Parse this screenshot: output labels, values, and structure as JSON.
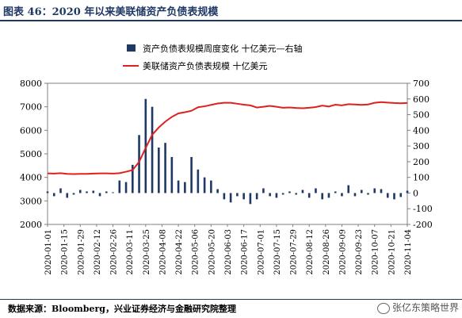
{
  "header": {
    "title": "图表 46：2020 年以来美联储资产负债表规模"
  },
  "footer": {
    "source": "数据来源：Bloomberg，兴业证券经济与金融研究院整理"
  },
  "watermark": {
    "text": "张亿东策略世界",
    "icon": "wechat-icon"
  },
  "chart_data": {
    "type": "bar+line",
    "legend_position": "top-center",
    "legend": [
      {
        "name": "资产负债表规模周度变化  十亿美元—右轴",
        "kind": "bar",
        "color": "#1f3864"
      },
      {
        "name": "美联储资产负债表规模  十亿美元",
        "kind": "line",
        "color": "#e02020"
      }
    ],
    "y_left": {
      "ylim": [
        2000,
        8000
      ],
      "ticks": [
        2000,
        3000,
        4000,
        5000,
        6000,
        7000,
        8000
      ]
    },
    "y_right": {
      "ylim": [
        -200,
        700
      ],
      "ticks": [
        -200,
        -100,
        0,
        100,
        200,
        300,
        400,
        500,
        600,
        700
      ]
    },
    "x_tick_labels": [
      "2020-01-01",
      "2020-01-15",
      "2020-01-29",
      "2020-02-12",
      "2020-02-26",
      "2020-03-11",
      "2020-03-25",
      "2020-04-08",
      "2020-04-22",
      "2020-05-06",
      "2020-05-20",
      "2020-06-03",
      "2020-06-17",
      "2020-07-01",
      "2020-07-15",
      "2020-07-29",
      "2020-08-12",
      "2020-08-26",
      "2020-09-09",
      "2020-09-23",
      "2020-10-07",
      "2020-10-21",
      "2020-11-04"
    ],
    "series": [
      {
        "name": "美联储资产负债表规模  十亿美元",
        "type": "line",
        "axis": "left",
        "values": [
          4170,
          4160,
          4180,
          4150,
          4140,
          4150,
          4150,
          4160,
          4170,
          4170,
          4160,
          4180,
          4240,
          4310,
          4660,
          5250,
          5810,
          6120,
          6370,
          6570,
          6720,
          6770,
          6830,
          6980,
          7020,
          7080,
          7140,
          7170,
          7170,
          7130,
          7090,
          7060,
          6970,
          7000,
          7040,
          7000,
          6960,
          6970,
          6950,
          6940,
          6960,
          6990,
          7050,
          7010,
          7090,
          7060,
          7110,
          7100,
          7080,
          7100,
          7170,
          7200,
          7180,
          7160,
          7150,
          7160
        ]
      },
      {
        "name": "资产负债表规模周度变化  十亿美元—右轴",
        "type": "bar",
        "axis": "right",
        "values": [
          10,
          -20,
          30,
          -30,
          -10,
          20,
          10,
          15,
          -20,
          10,
          5,
          80,
          70,
          180,
          370,
          600,
          550,
          290,
          320,
          230,
          80,
          70,
          230,
          150,
          100,
          80,
          25,
          -40,
          -60,
          -20,
          -40,
          -70,
          -40,
          30,
          -20,
          -30,
          -10,
          10,
          -10,
          20,
          -30,
          30,
          -40,
          -30,
          10,
          -20,
          50,
          -20,
          20,
          -10,
          30,
          25,
          -30,
          -40,
          -25,
          15
        ]
      }
    ]
  }
}
